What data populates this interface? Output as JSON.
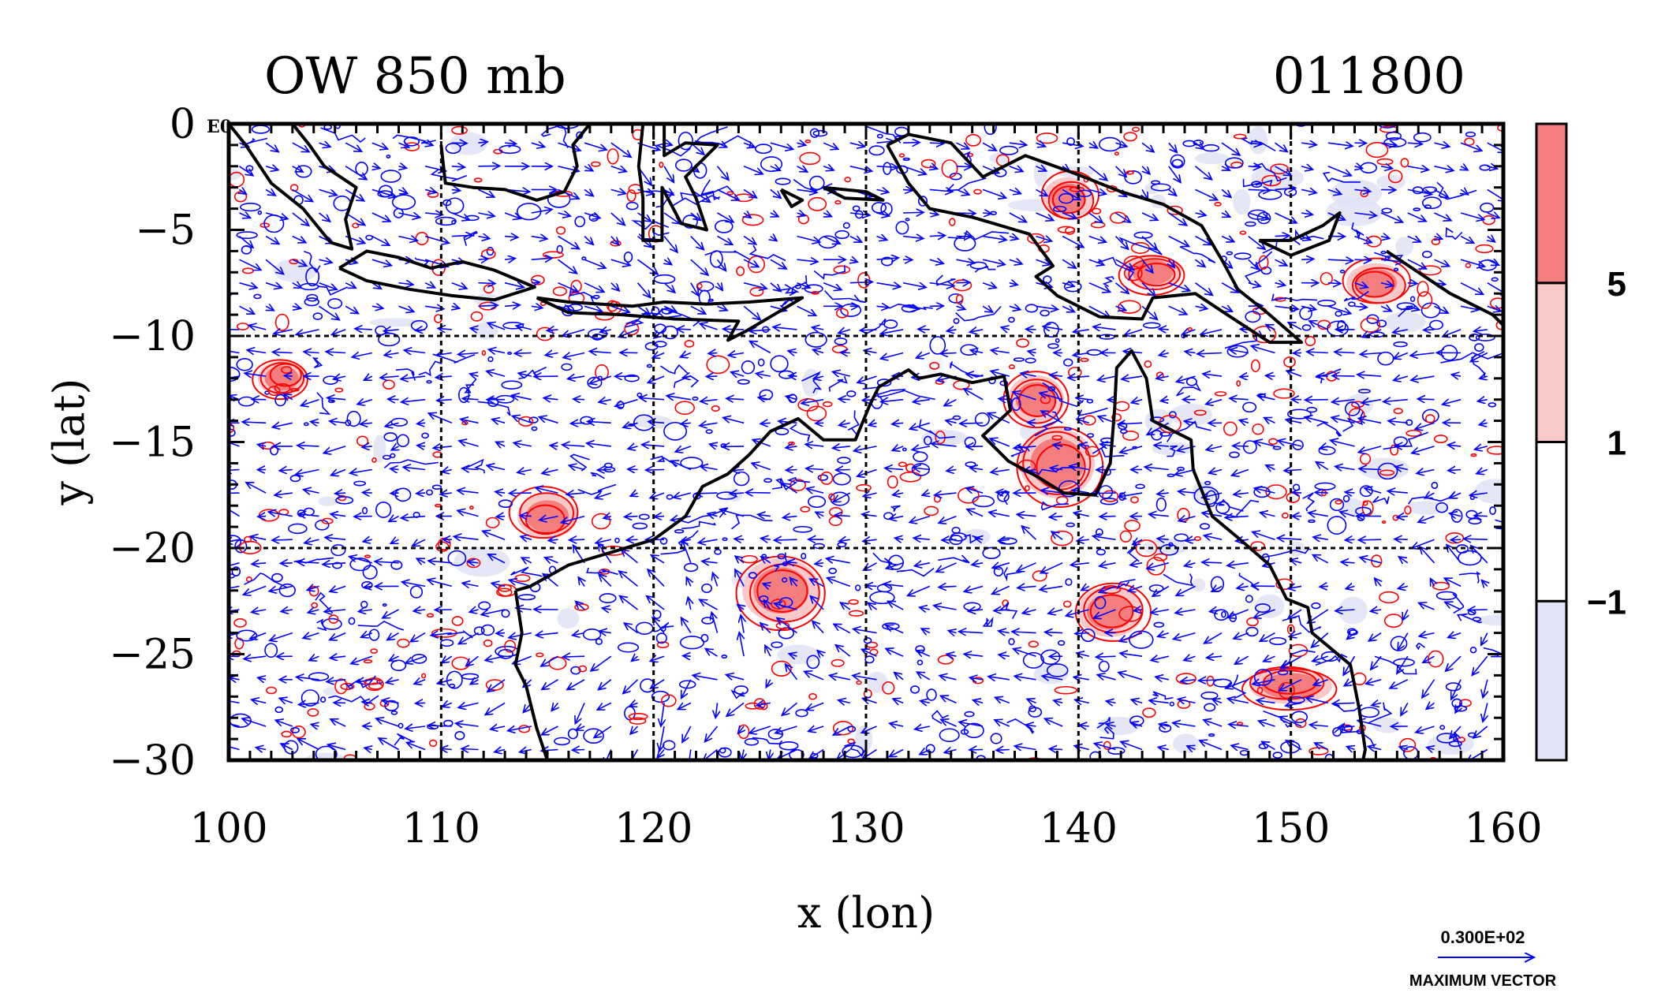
{
  "chart_data": {
    "type": "heatmap",
    "title_left": "OW 850 mb",
    "title_right": "011800",
    "xlabel": "x (lon)",
    "ylabel": "y (lat)",
    "xlim": [
      100,
      160
    ],
    "ylim": [
      -30,
      0
    ],
    "x_ticks": [
      100,
      110,
      120,
      130,
      140,
      150,
      160
    ],
    "y_ticks": [
      0,
      -5,
      -10,
      -15,
      -20,
      -25,
      -30
    ],
    "x_tick_labels": [
      "100",
      "110",
      "120",
      "130",
      "140",
      "150",
      "160"
    ],
    "y_tick_labels": [
      "0",
      "−5",
      "−10",
      "−15",
      "−20",
      "−25",
      "−30"
    ],
    "corner_label": "E0",
    "grid": "dashed every 10°",
    "colorbar": {
      "levels": [
        -1,
        1,
        5
      ],
      "level_labels": [
        "−1",
        "1",
        "5"
      ],
      "fill_colors": [
        "#e1e3f6",
        "#ffffff",
        "#f9c8c8",
        "#f47e7e"
      ]
    },
    "contour_colors": {
      "positive": "#ff0000",
      "negative": "#0000ff"
    },
    "vector_color": "#0000ff",
    "reference_vector": {
      "value_label": "0.300E+02",
      "caption": "MAXIMUM VECTOR"
    },
    "positive_blobs": [
      {
        "lon": 102.5,
        "lat": -12.0
      },
      {
        "lon": 115.0,
        "lat": -18.5
      },
      {
        "lon": 126.0,
        "lat": -22.0
      },
      {
        "lon": 138.0,
        "lat": -13.0
      },
      {
        "lon": 139.0,
        "lat": -16.0
      },
      {
        "lon": 143.5,
        "lat": -7.0
      },
      {
        "lon": 139.5,
        "lat": -3.5
      },
      {
        "lon": 141.5,
        "lat": -23.0
      },
      {
        "lon": 154.0,
        "lat": -7.5
      },
      {
        "lon": 150.0,
        "lat": -26.5
      }
    ]
  }
}
